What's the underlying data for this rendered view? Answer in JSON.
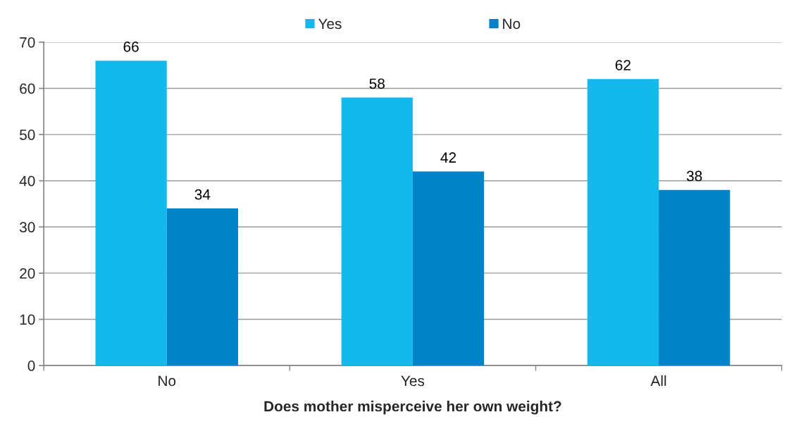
{
  "chart_data": {
    "type": "bar",
    "xlabel": "Does mother misperceive her own weight?",
    "categories": [
      "No",
      "Yes",
      "All"
    ],
    "series": [
      {
        "name": "Yes",
        "color": "#12b9ed",
        "values": [
          66,
          58,
          62
        ]
      },
      {
        "name": "No",
        "color": "#0083c8",
        "values": [
          34,
          42,
          38
        ]
      }
    ],
    "ylim": [
      0,
      70
    ],
    "yticks": [
      0,
      10,
      20,
      30,
      40,
      50,
      60,
      70
    ],
    "grid": "y",
    "legend": "top",
    "data_labels": true
  }
}
